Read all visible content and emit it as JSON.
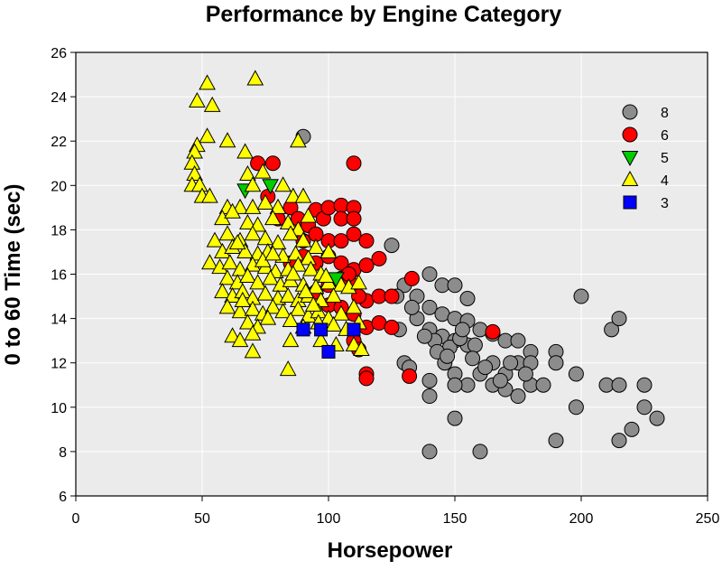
{
  "chart_data": {
    "type": "scatter",
    "title": "Performance by Engine Category",
    "xlabel": "Horsepower",
    "ylabel": "0 to 60 Time (sec)",
    "xlim": [
      0,
      250
    ],
    "ylim": [
      6,
      26
    ],
    "x_ticks": [
      0,
      50,
      100,
      150,
      200,
      250
    ],
    "y_ticks": [
      6,
      8,
      10,
      12,
      14,
      16,
      18,
      20,
      22,
      24,
      26
    ],
    "grid": true,
    "background": "#ebebeb",
    "legend_position": "top-right",
    "series": [
      {
        "name": "8",
        "marker": "circle",
        "color": "#8c8c8c",
        "points": [
          [
            90,
            22.2
          ],
          [
            125,
            17.3
          ],
          [
            130,
            15.5
          ],
          [
            135,
            15
          ],
          [
            140,
            16
          ],
          [
            145,
            15.5
          ],
          [
            150,
            15.5
          ],
          [
            155,
            14.9
          ],
          [
            140,
            14.5
          ],
          [
            145,
            14.2
          ],
          [
            150,
            14
          ],
          [
            155,
            13.9
          ],
          [
            160,
            13.5
          ],
          [
            165,
            13.3
          ],
          [
            170,
            13
          ],
          [
            175,
            13
          ],
          [
            180,
            12.5
          ],
          [
            135,
            14
          ],
          [
            140,
            13.5
          ],
          [
            145,
            13.2
          ],
          [
            150,
            13
          ],
          [
            155,
            12.8
          ],
          [
            142,
            13
          ],
          [
            148,
            12.7
          ],
          [
            152,
            13.1
          ],
          [
            146,
            12
          ],
          [
            150,
            11.5
          ],
          [
            155,
            11
          ],
          [
            140,
            11.2
          ],
          [
            140,
            10.5
          ],
          [
            150,
            11
          ],
          [
            150,
            9.5
          ],
          [
            160,
            11.5
          ],
          [
            165,
            11
          ],
          [
            170,
            11.5
          ],
          [
            175,
            12
          ],
          [
            180,
            12
          ],
          [
            180,
            11
          ],
          [
            175,
            10.5
          ],
          [
            170,
            10.8
          ],
          [
            165,
            12
          ],
          [
            185,
            11
          ],
          [
            190,
            12.5
          ],
          [
            190,
            12
          ],
          [
            198,
            11.5
          ],
          [
            198,
            10
          ],
          [
            200,
            15
          ],
          [
            210,
            11
          ],
          [
            212,
            13.5
          ],
          [
            215,
            14
          ],
          [
            215,
            11
          ],
          [
            220,
            9
          ],
          [
            215,
            8.5
          ],
          [
            225,
            11
          ],
          [
            225,
            10
          ],
          [
            230,
            9.5
          ],
          [
            190,
            8.5
          ],
          [
            160,
            8
          ],
          [
            140,
            8
          ],
          [
            130,
            12
          ],
          [
            132,
            11.8
          ],
          [
            128,
            13.5
          ],
          [
            127,
            15
          ],
          [
            133,
            14.5
          ],
          [
            138,
            13.2
          ],
          [
            143,
            12.5
          ],
          [
            153,
            13.5
          ],
          [
            158,
            12.8
          ],
          [
            172,
            12
          ],
          [
            178,
            11.5
          ],
          [
            168,
            11.2
          ],
          [
            162,
            11.8
          ],
          [
            147,
            12.3
          ],
          [
            157,
            12.2
          ]
        ]
      },
      {
        "name": "6",
        "marker": "circle",
        "color": "#ff0000",
        "points": [
          [
            72,
            21
          ],
          [
            78,
            21
          ],
          [
            110,
            21
          ],
          [
            76,
            19.5
          ],
          [
            80,
            18.5
          ],
          [
            85,
            19
          ],
          [
            88,
            18.5
          ],
          [
            90,
            17.5
          ],
          [
            92,
            18.2
          ],
          [
            95,
            18.9
          ],
          [
            98,
            18.5
          ],
          [
            100,
            19
          ],
          [
            105,
            19.1
          ],
          [
            110,
            19
          ],
          [
            105,
            18.5
          ],
          [
            110,
            18.5
          ],
          [
            95,
            17.8
          ],
          [
            100,
            17.5
          ],
          [
            105,
            17.5
          ],
          [
            110,
            17.8
          ],
          [
            115,
            17.5
          ],
          [
            85,
            16.5
          ],
          [
            90,
            16.8
          ],
          [
            95,
            16.5
          ],
          [
            100,
            16.8
          ],
          [
            105,
            16.5
          ],
          [
            110,
            16.2
          ],
          [
            115,
            16.4
          ],
          [
            120,
            16.7
          ],
          [
            100,
            15.5
          ],
          [
            105,
            15.8
          ],
          [
            110,
            15.5
          ],
          [
            115,
            14.8
          ],
          [
            120,
            15
          ],
          [
            125,
            15
          ],
          [
            133,
            15.8
          ],
          [
            95,
            15.2
          ],
          [
            100,
            14.6
          ],
          [
            105,
            14.5
          ],
          [
            110,
            14.2
          ],
          [
            115,
            13.6
          ],
          [
            120,
            13.8
          ],
          [
            125,
            13.6
          ],
          [
            110,
            13
          ],
          [
            112,
            12.6
          ],
          [
            115,
            11.5
          ],
          [
            115,
            11.3
          ],
          [
            132,
            11.4
          ],
          [
            165,
            13.4
          ],
          [
            112,
            15
          ],
          [
            108,
            16
          ]
        ]
      },
      {
        "name": "5",
        "marker": "triangle-down",
        "color": "#00cc00",
        "points": [
          [
            67,
            19.8
          ],
          [
            77,
            20
          ],
          [
            103,
            15.8
          ]
        ]
      },
      {
        "name": "4",
        "marker": "triangle-up",
        "color": "#ffff00",
        "points": [
          [
            71,
            24.8
          ],
          [
            52,
            24.6
          ],
          [
            54,
            23.6
          ],
          [
            48,
            23.8
          ],
          [
            52,
            22.2
          ],
          [
            48,
            21.8
          ],
          [
            60,
            22
          ],
          [
            47,
            21.5
          ],
          [
            46,
            21
          ],
          [
            47,
            20.5
          ],
          [
            67,
            21.5
          ],
          [
            88,
            22
          ],
          [
            46,
            20
          ],
          [
            49,
            20
          ],
          [
            50,
            19.5
          ],
          [
            53,
            19.5
          ],
          [
            68,
            20.5
          ],
          [
            70,
            20
          ],
          [
            74,
            20.6
          ],
          [
            82,
            20
          ],
          [
            86,
            19.5
          ],
          [
            90,
            19.5
          ],
          [
            60,
            19
          ],
          [
            65,
            19
          ],
          [
            70,
            19
          ],
          [
            75,
            19.2
          ],
          [
            80,
            19
          ],
          [
            58,
            18.5
          ],
          [
            62,
            18.8
          ],
          [
            68,
            18.3
          ],
          [
            72,
            18.2
          ],
          [
            78,
            18.5
          ],
          [
            84,
            18.3
          ],
          [
            88,
            18
          ],
          [
            92,
            18.6
          ],
          [
            60,
            17.8
          ],
          [
            65,
            17.5
          ],
          [
            70,
            17.8
          ],
          [
            75,
            17.6
          ],
          [
            80,
            17.4
          ],
          [
            85,
            17.8
          ],
          [
            90,
            17.5
          ],
          [
            95,
            17.2
          ],
          [
            100,
            17
          ],
          [
            55,
            17.5
          ],
          [
            58,
            17
          ],
          [
            62,
            17.2
          ],
          [
            67,
            17
          ],
          [
            72,
            16.9
          ],
          [
            76,
            17
          ],
          [
            82,
            16.8
          ],
          [
            87,
            16.9
          ],
          [
            92,
            16.7
          ],
          [
            53,
            16.5
          ],
          [
            57,
            16.3
          ],
          [
            61,
            16.5
          ],
          [
            65,
            16.2
          ],
          [
            70,
            16.4
          ],
          [
            75,
            16.3
          ],
          [
            79,
            16.1
          ],
          [
            84,
            16.2
          ],
          [
            88,
            16.4
          ],
          [
            93,
            16.2
          ],
          [
            97,
            16
          ],
          [
            60,
            15.8
          ],
          [
            64,
            15.6
          ],
          [
            68,
            15.9
          ],
          [
            72,
            15.6
          ],
          [
            77,
            15.8
          ],
          [
            81,
            15.5
          ],
          [
            85,
            15.7
          ],
          [
            90,
            15.5
          ],
          [
            95,
            15.4
          ],
          [
            100,
            15.6
          ],
          [
            105,
            15.5
          ],
          [
            58,
            15.2
          ],
          [
            62,
            15
          ],
          [
            66,
            15.2
          ],
          [
            70,
            14.9
          ],
          [
            75,
            15.1
          ],
          [
            80,
            14.9
          ],
          [
            84,
            15
          ],
          [
            88,
            14.8
          ],
          [
            92,
            15
          ],
          [
            97,
            14.8
          ],
          [
            102,
            15
          ],
          [
            108,
            15.4
          ],
          [
            112,
            15.6
          ],
          [
            60,
            14.5
          ],
          [
            65,
            14.3
          ],
          [
            70,
            14.4
          ],
          [
            74,
            14.2
          ],
          [
            78,
            14.5
          ],
          [
            82,
            14.3
          ],
          [
            88,
            14.4
          ],
          [
            92,
            14.1
          ],
          [
            96,
            14.3
          ],
          [
            100,
            14
          ],
          [
            105,
            14.2
          ],
          [
            110,
            14.5
          ],
          [
            68,
            13.8
          ],
          [
            72,
            13.6
          ],
          [
            76,
            14
          ],
          [
            85,
            13.9
          ],
          [
            90,
            13.6
          ],
          [
            96,
            13.8
          ],
          [
            102,
            13.7
          ],
          [
            107,
            13.5
          ],
          [
            112,
            13.8
          ],
          [
            62,
            13.2
          ],
          [
            65,
            13
          ],
          [
            70,
            13.3
          ],
          [
            85,
            13
          ],
          [
            97,
            13
          ],
          [
            103,
            12.8
          ],
          [
            110,
            12.8
          ],
          [
            113,
            12.6
          ],
          [
            70,
            12.5
          ],
          [
            84,
            11.7
          ],
          [
            66,
            14.8
          ],
          [
            74,
            16.6
          ],
          [
            86,
            16
          ],
          [
            91,
            15.2
          ],
          [
            99,
            15.9
          ],
          [
            78,
            16.9
          ],
          [
            64,
            17.4
          ],
          [
            94,
            14.6
          ]
        ]
      },
      {
        "name": "3",
        "marker": "square",
        "color": "#0000ff",
        "points": [
          [
            90,
            13.5
          ],
          [
            97,
            13.5
          ],
          [
            110,
            13.5
          ],
          [
            100,
            12.5
          ]
        ]
      }
    ]
  }
}
